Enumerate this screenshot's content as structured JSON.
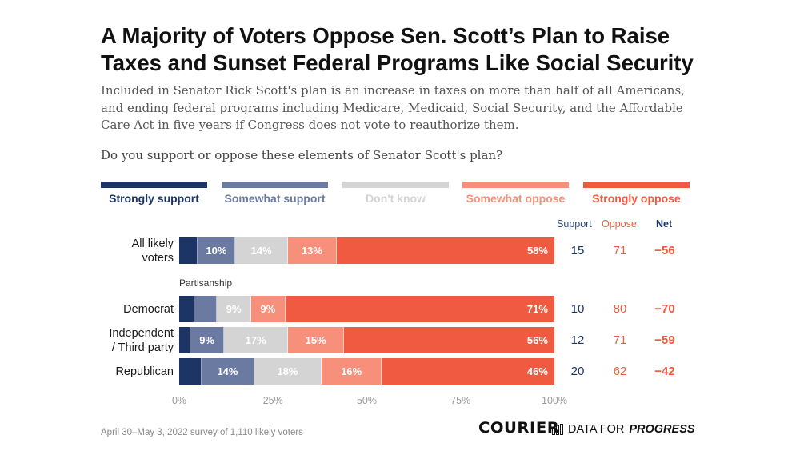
{
  "header": {
    "title": "A Majority of Voters Oppose Sen. Scott’s Plan to Raise Taxes and Sunset Federal Programs Like Social Security",
    "subtitle": "Included in Senator Rick Scott's plan is an increase in taxes on more than half of all Americans, and ending federal programs including Medicare, Medicaid, Social Security, and the Affordable Care Act in five years if Congress does not vote to reauthorize them.",
    "question": "Do you support or oppose these elements of Senator Scott's plan?"
  },
  "legend": [
    {
      "label": "Strongly support",
      "color": "#1c3566"
    },
    {
      "label": "Somewhat support",
      "color": "#6b7aa0"
    },
    {
      "label": "Don't know",
      "color": "#d4d4d4"
    },
    {
      "label": "Somewhat oppose",
      "color": "#f7907a"
    },
    {
      "label": "Strongly oppose",
      "color": "#f05a40"
    }
  ],
  "columns": {
    "support": "Support",
    "oppose": "Oppose",
    "net": "Net"
  },
  "section_label": "Partisanship",
  "chart_data": {
    "type": "bar",
    "orientation": "horizontal",
    "stacked": true,
    "categories": [
      "All likely voters",
      "Democrat",
      "Independent / Third party",
      "Republican"
    ],
    "series": [
      {
        "name": "Strongly support",
        "values": [
          5,
          4,
          3,
          6
        ],
        "labels": [
          "",
          "",
          "",
          ""
        ]
      },
      {
        "name": "Somewhat support",
        "values": [
          10,
          6,
          9,
          14
        ],
        "labels": [
          "10%",
          "",
          "9%",
          "14%"
        ]
      },
      {
        "name": "Don't know",
        "values": [
          14,
          9,
          17,
          18
        ],
        "labels": [
          "14%",
          "9%",
          "17%",
          "18%"
        ]
      },
      {
        "name": "Somewhat oppose",
        "values": [
          13,
          9,
          15,
          16
        ],
        "labels": [
          "13%",
          "9%",
          "15%",
          "16%"
        ]
      },
      {
        "name": "Strongly oppose",
        "values": [
          58,
          71,
          56,
          46
        ],
        "labels": [
          "58%",
          "71%",
          "56%",
          "46%"
        ]
      }
    ],
    "support": [
      15,
      10,
      12,
      20
    ],
    "oppose": [
      71,
      80,
      71,
      62
    ],
    "net": [
      "−56",
      "−70",
      "−59",
      "−42"
    ],
    "xticks": [
      "0%",
      "25%",
      "50%",
      "75%",
      "100%"
    ],
    "xlim": [
      0,
      100
    ]
  },
  "footer": {
    "note": "April 30–May 3, 2022 survey of 1,110 likely voters",
    "logo_courier": "COURIER",
    "logo_dfp_prefix": "DATA FOR",
    "logo_dfp_bold": "PROGRESS"
  }
}
